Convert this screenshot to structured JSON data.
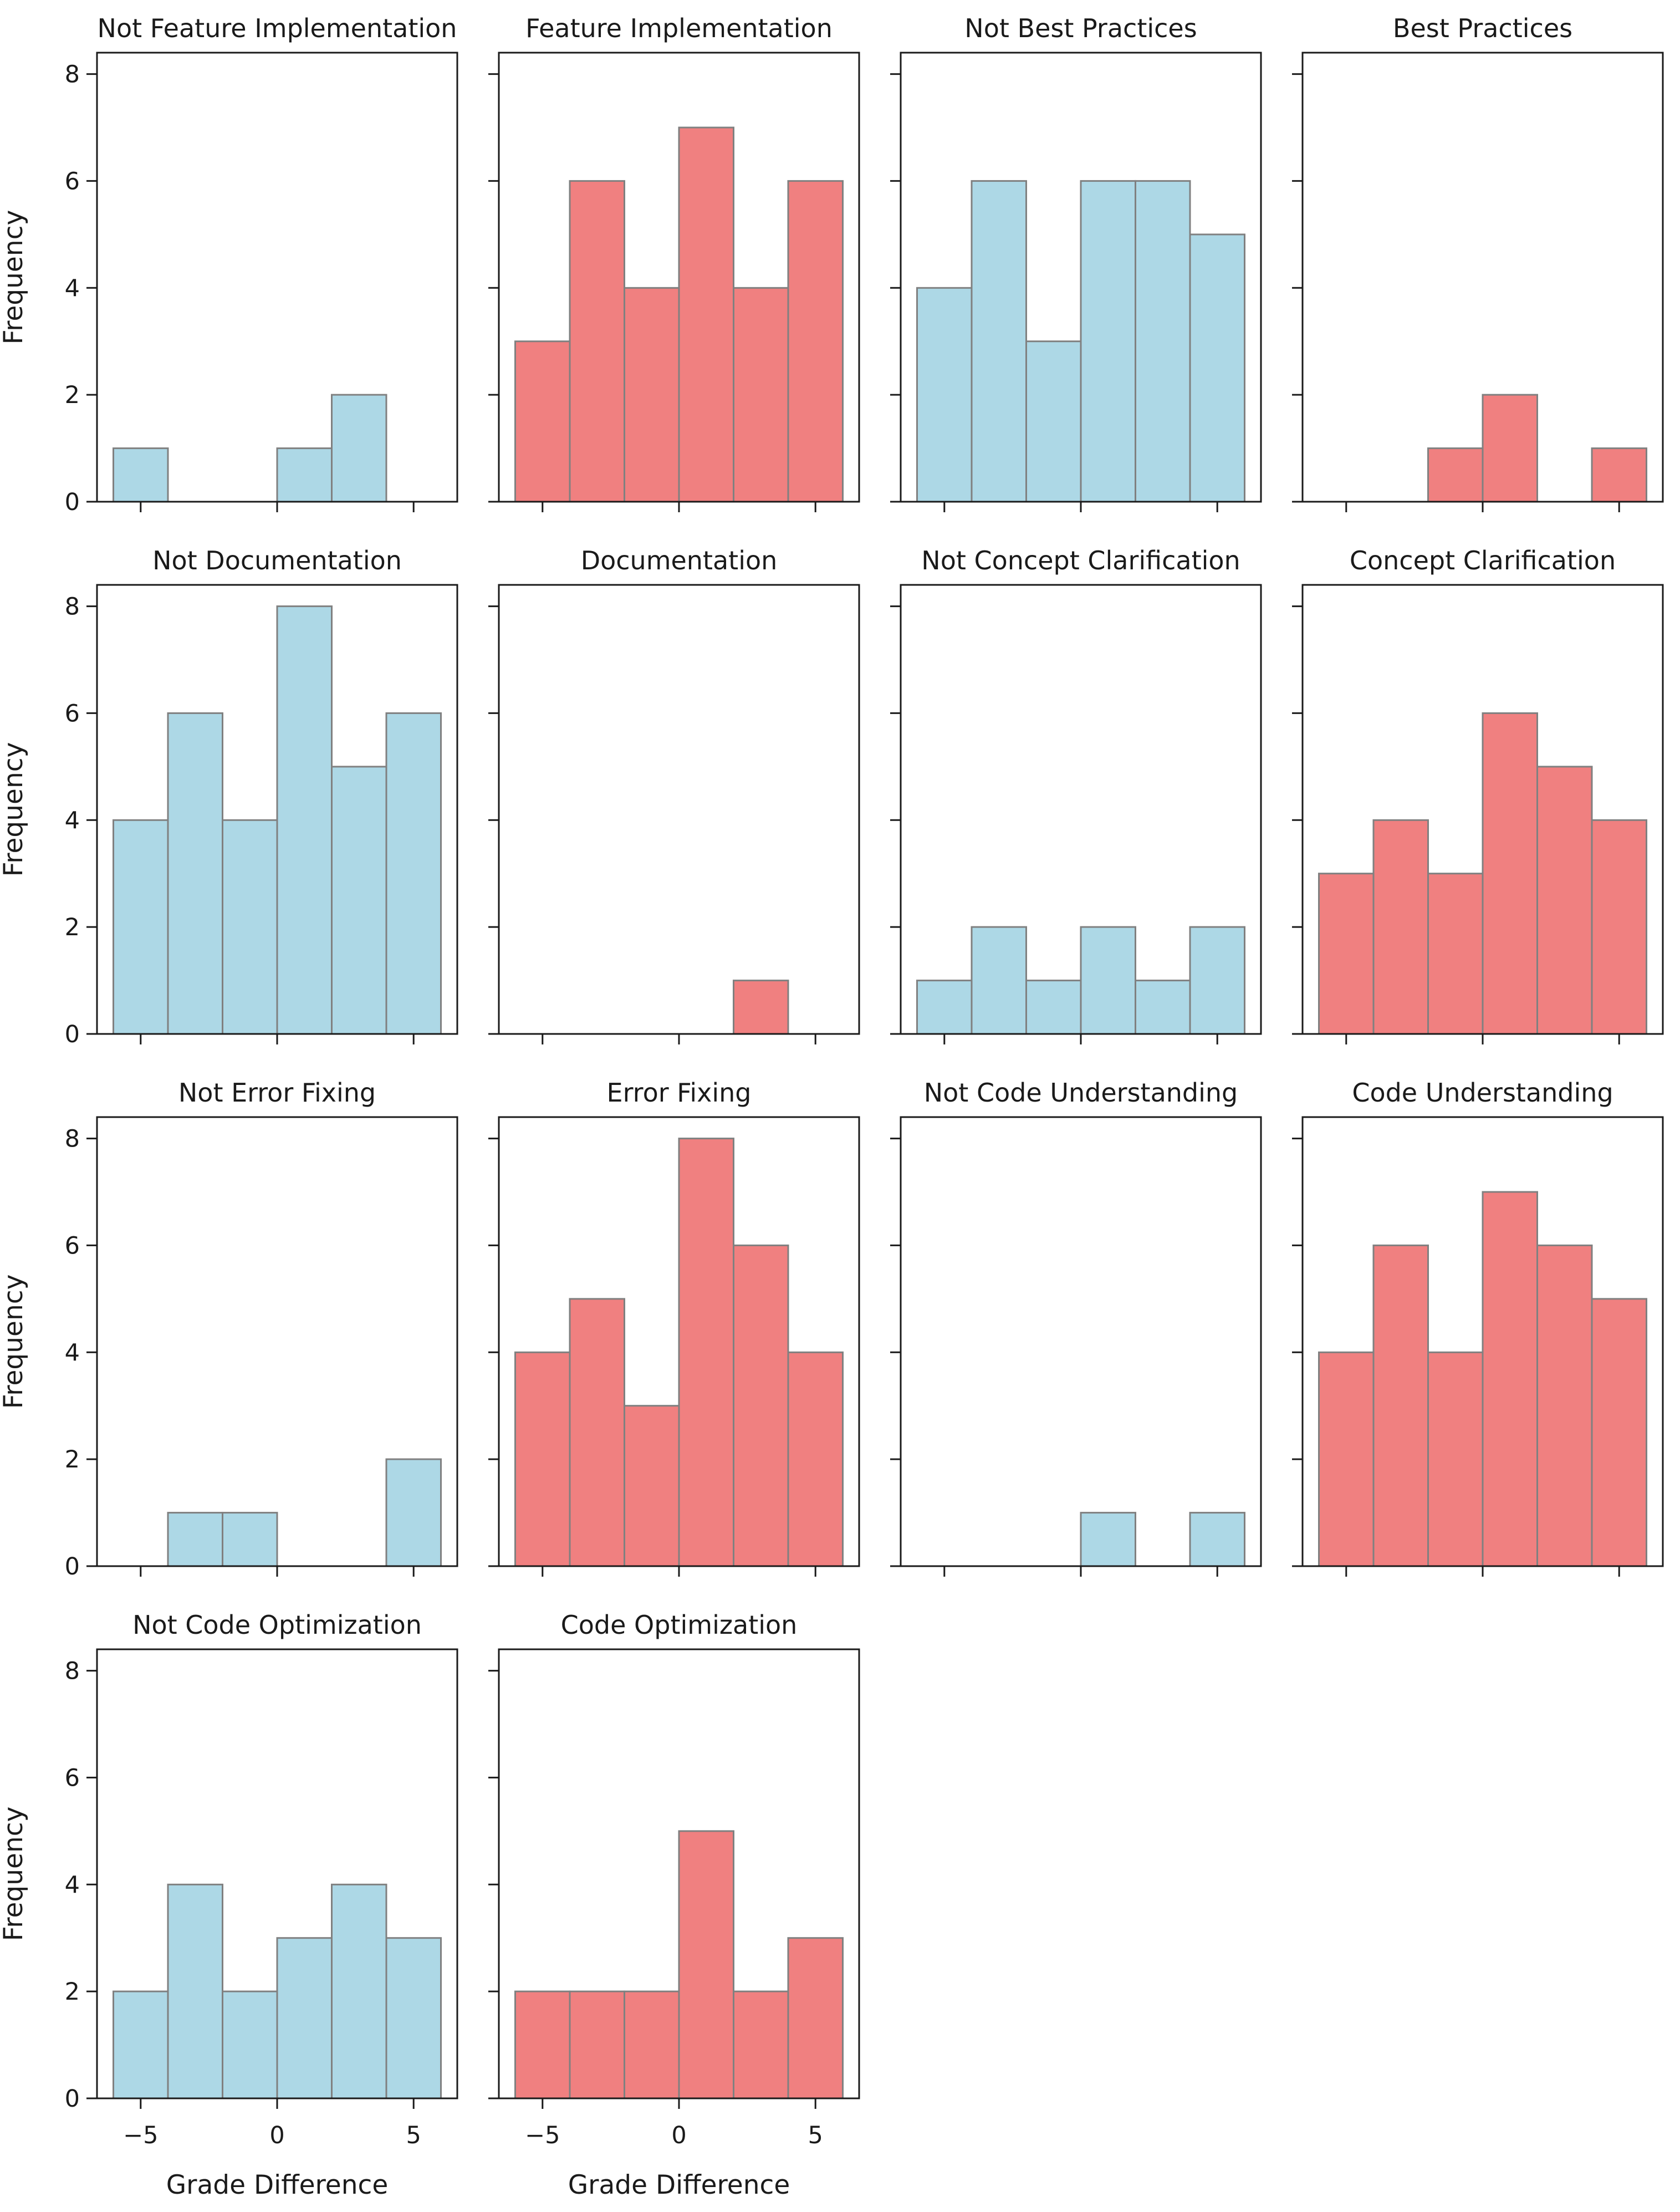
{
  "figure": {
    "xlabel": "Grade Difference",
    "ylabel": "Frequency",
    "x_tick_labels": [
      "−5",
      "0",
      "5"
    ],
    "x_tick_values": [
      -5,
      0,
      5
    ],
    "y_tick_labels": [
      "0",
      "2",
      "4",
      "6",
      "8"
    ],
    "y_tick_values": [
      0,
      2,
      4,
      6,
      8
    ],
    "colors": {
      "blue_fill": "#ADD8E6",
      "red_fill": "#F08080",
      "bar_edge": "#808080",
      "axis": "#1a1a1a",
      "text": "#1a1a1a",
      "background": "#ffffff"
    }
  },
  "chart_data": {
    "type": "bar",
    "title": "",
    "xlabel": "Grade Difference",
    "ylabel": "Frequency",
    "bin_edges": [
      -6,
      -4,
      -2,
      0,
      2,
      4,
      6
    ],
    "xlim": [
      -6.6,
      6.6
    ],
    "ylim": [
      0,
      8.4
    ],
    "grid": false,
    "legend": "none",
    "layout": {
      "grid_rows": 4,
      "grid_cols": 4,
      "ylabel_on_col": 0,
      "xlabel_on_row": 3
    },
    "subplots": [
      {
        "title": "Not Feature Implementation",
        "color": "blue",
        "values": [
          1,
          0,
          0,
          1,
          2,
          0
        ]
      },
      {
        "title": "Feature Implementation",
        "color": "red",
        "values": [
          3,
          6,
          4,
          7,
          4,
          6
        ]
      },
      {
        "title": "Not Best Practices",
        "color": "blue",
        "values": [
          4,
          6,
          3,
          6,
          6,
          5
        ]
      },
      {
        "title": "Best Practices",
        "color": "red",
        "values": [
          0,
          0,
          1,
          2,
          0,
          1
        ]
      },
      {
        "title": "Not Documentation",
        "color": "blue",
        "values": [
          4,
          6,
          4,
          8,
          5,
          6
        ]
      },
      {
        "title": "Documentation",
        "color": "red",
        "values": [
          0,
          0,
          0,
          0,
          1,
          0
        ]
      },
      {
        "title": "Not Concept Clarification",
        "color": "blue",
        "values": [
          1,
          2,
          1,
          2,
          1,
          2
        ]
      },
      {
        "title": "Concept Clarification",
        "color": "red",
        "values": [
          3,
          4,
          3,
          6,
          5,
          4
        ]
      },
      {
        "title": "Not Error Fixing",
        "color": "blue",
        "values": [
          0,
          1,
          1,
          0,
          0,
          2
        ]
      },
      {
        "title": "Error Fixing",
        "color": "red",
        "values": [
          4,
          5,
          3,
          8,
          6,
          4
        ]
      },
      {
        "title": "Not Code Understanding",
        "color": "blue",
        "values": [
          0,
          0,
          0,
          1,
          0,
          1
        ]
      },
      {
        "title": "Code Understanding",
        "color": "red",
        "values": [
          4,
          6,
          4,
          7,
          6,
          5
        ]
      },
      {
        "title": "Not Code Optimization",
        "color": "blue",
        "values": [
          2,
          4,
          2,
          3,
          4,
          3
        ]
      },
      {
        "title": "Code Optimization",
        "color": "red",
        "values": [
          2,
          2,
          2,
          5,
          2,
          3
        ]
      }
    ]
  }
}
